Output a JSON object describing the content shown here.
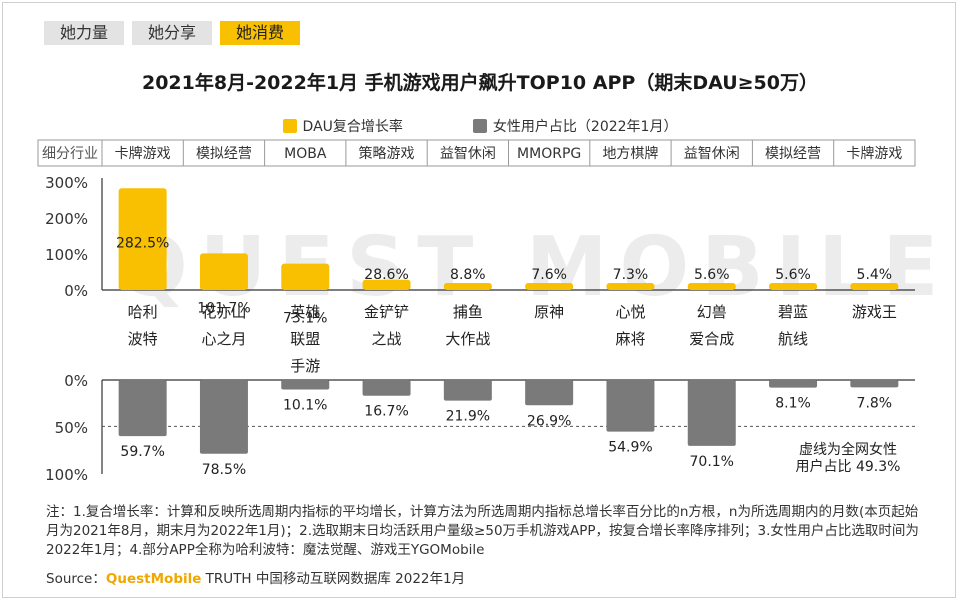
{
  "tabs": [
    {
      "label": "她力量",
      "active": false
    },
    {
      "label": "她分享",
      "active": false
    },
    {
      "label": "她消费",
      "active": true
    }
  ],
  "title": "2021年8月-2022年1月 手机游戏用户飙升TOP10 APP（期末DAU≥50万）",
  "legend": {
    "dau_label": "DAU复合增长率",
    "female_label": "女性用户占比（2022年1月）"
  },
  "colors": {
    "accent": "#f8c000",
    "gray_bar": "#7a7a7a",
    "tab_inactive": "#e3e3e3"
  },
  "category_header": "细分行业",
  "watermark": "QUEST MOBILE",
  "chart_data": [
    {
      "type": "bar",
      "name": "DAU复合增长率",
      "categories": [
        "哈利\n波特",
        "花亦山\n心之月",
        "英雄\n联盟\n手游",
        "金铲铲\n之战",
        "捕鱼\n大作战",
        "原神",
        "心悦\n麻将",
        "幻兽\n爱合成",
        "碧蓝\n航线",
        "游戏王"
      ],
      "segments": [
        "卡牌游戏",
        "模拟经营",
        "MOBA",
        "策略游戏",
        "益智休闲",
        "MMORPG",
        "地方棋牌",
        "益智休闲",
        "模拟经营",
        "卡牌游戏"
      ],
      "values": [
        282.5,
        101.7,
        73.1,
        28.6,
        8.8,
        7.6,
        7.3,
        5.6,
        5.6,
        5.4
      ],
      "value_labels": [
        "282.5%",
        "101.7%",
        "73.1%",
        "28.6%",
        "8.8%",
        "7.6%",
        "7.3%",
        "5.6%",
        "5.6%",
        "5.4%"
      ],
      "ylim": [
        0,
        300
      ],
      "ticks": [
        "300%",
        "200%",
        "100%",
        "0%"
      ],
      "tick_values": [
        300,
        200,
        100,
        0
      ]
    },
    {
      "type": "bar",
      "name": "女性用户占比（2022年1月）",
      "values": [
        59.7,
        78.5,
        10.1,
        16.7,
        21.9,
        26.9,
        54.9,
        70.1,
        8.1,
        7.8
      ],
      "value_labels": [
        "59.7%",
        "78.5%",
        "10.1%",
        "16.7%",
        "21.9%",
        "26.9%",
        "54.9%",
        "70.1%",
        "8.1%",
        "7.8%"
      ],
      "ylim": [
        0,
        100
      ],
      "ticks": [
        "0%",
        "50%",
        "100%"
      ],
      "tick_values": [
        0,
        50,
        100
      ],
      "reference_value": 49.3,
      "reference_note_lines": [
        "虚线为全网女性",
        "用户占比 49.3%"
      ]
    }
  ],
  "footnote": "注：1.复合增长率：计算和反映所选周期内指标的平均增长，计算方法为所选周期内指标总增长率百分比的n方根，n为所选周期内的月数(本页起始月为2021年8月，期末月为2022年1月)；2.选取期末日均活跃用户量级≥50万手机游戏APP，按复合增长率降序排列；3.女性用户占比选取时间为2022年1月；4.部分APP全称为哈利波特：魔法觉醒、游戏王YGOMobile",
  "source": {
    "prefix": "Source：",
    "brand": "QuestMobile",
    "suffix": " TRUTH 中国移动互联网数据库 2022年1月"
  }
}
